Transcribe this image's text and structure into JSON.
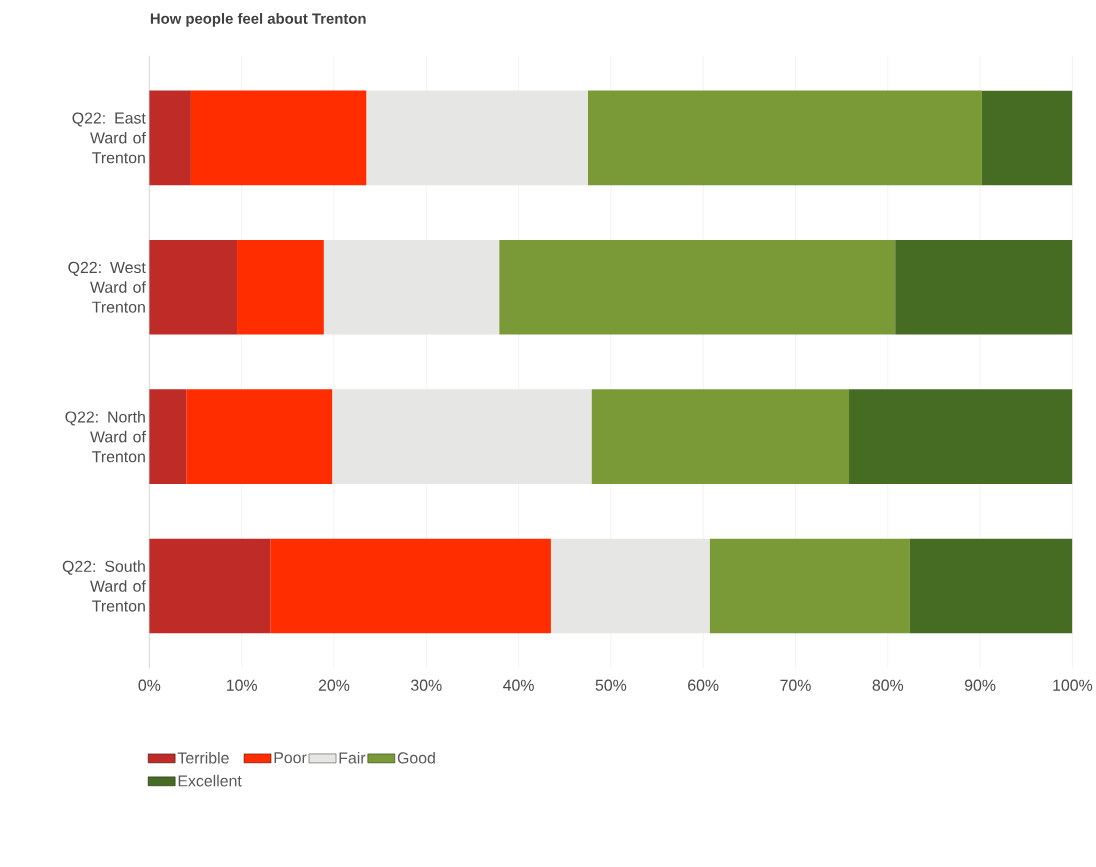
{
  "chart_data": {
    "type": "bar",
    "orientation": "horizontal",
    "stacked": true,
    "title": "How people feel about Trenton",
    "categories": [
      "Q22: East Ward of Trenton",
      "Q22: West Ward of Trenton",
      "Q22: North Ward of Trenton",
      "Q22: South Ward of Trenton"
    ],
    "series": [
      {
        "name": "Terrible",
        "color": "#bf2b26",
        "values": [
          4.5,
          9.5,
          4.0,
          13.1
        ]
      },
      {
        "name": "Poor",
        "color": "#ff2d00",
        "values": [
          19.0,
          9.4,
          15.8,
          30.4
        ]
      },
      {
        "name": "Fair",
        "color": "#e6e6e4",
        "values": [
          24.0,
          19.0,
          28.1,
          17.2
        ]
      },
      {
        "name": "Good",
        "color": "#7a9a37",
        "values": [
          42.7,
          42.9,
          27.9,
          21.7
        ]
      },
      {
        "name": "Excellent",
        "color": "#466c23",
        "values": [
          9.8,
          19.2,
          24.2,
          17.6
        ]
      }
    ],
    "xlim": [
      0,
      100
    ],
    "xticks": [
      {
        "value": 0,
        "label": "0%"
      },
      {
        "value": 10,
        "label": "10%"
      },
      {
        "value": 20,
        "label": "20%"
      },
      {
        "value": 30,
        "label": "30%"
      },
      {
        "value": 40,
        "label": "40%"
      },
      {
        "value": 50,
        "label": "50%"
      },
      {
        "value": 60,
        "label": "60%"
      },
      {
        "value": 70,
        "label": "70%"
      },
      {
        "value": 80,
        "label": "80%"
      },
      {
        "value": 90,
        "label": "90%"
      },
      {
        "value": 100,
        "label": "100%"
      }
    ],
    "grid": "x",
    "legend": "bottom"
  }
}
